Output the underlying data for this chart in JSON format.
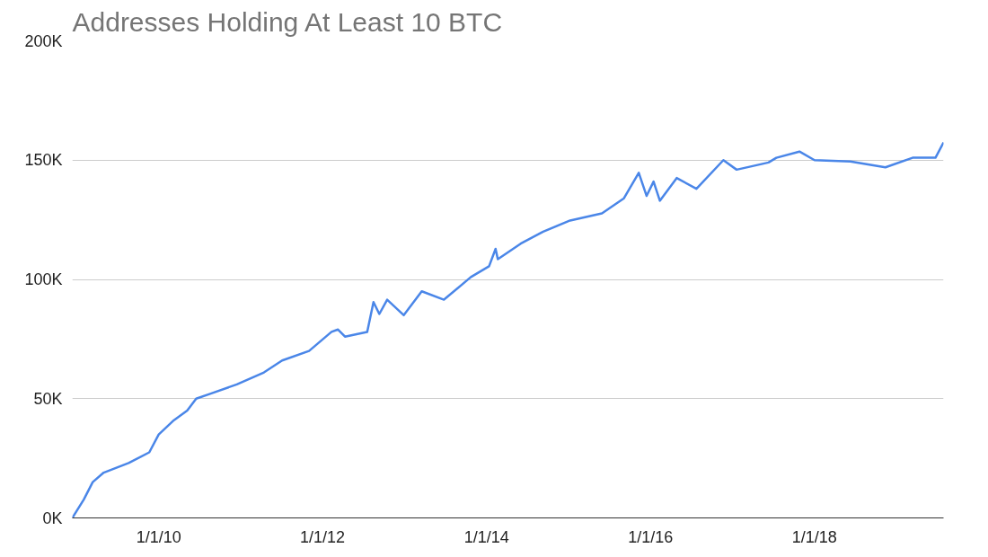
{
  "chart_data": {
    "type": "line",
    "title": "Addresses Holding At Least 10 BTC",
    "x": [
      "2008-12-12",
      "2009-02-01",
      "2009-03-13",
      "2009-05-01",
      "2009-08-20",
      "2009-11-20",
      "2010-01-01",
      "2010-03-10",
      "2010-05-08",
      "2010-06-17",
      "2010-08-18",
      "2010-12-15",
      "2011-04-15",
      "2011-07-05",
      "2011-11-02",
      "2012-02-10",
      "2012-03-10",
      "2012-04-10",
      "2012-07-18",
      "2012-08-15",
      "2012-09-10",
      "2012-10-15",
      "2012-12-28",
      "2013-03-18",
      "2013-06-25",
      "2013-10-23",
      "2014-01-12",
      "2014-02-10",
      "2014-02-20",
      "2014-06-02",
      "2014-09-10",
      "2015-01-08",
      "2015-05-30",
      "2015-09-05",
      "2015-11-10",
      "2015-12-15",
      "2016-01-15",
      "2016-02-12",
      "2016-04-27",
      "2016-07-24",
      "2016-11-21",
      "2017-01-19",
      "2017-06-10",
      "2017-07-15",
      "2017-10-26",
      "2018-01-01",
      "2018-06-10",
      "2018-11-13",
      "2019-03-14",
      "2019-06-24",
      "2019-07-30"
    ],
    "series": [
      {
        "color": "#4a86e8",
        "values": [
          0,
          7700,
          15000,
          19000,
          23000,
          27500,
          35000,
          41000,
          45000,
          50000,
          52000,
          56000,
          61000,
          66000,
          70000,
          78000,
          79000,
          76000,
          78000,
          90500,
          85500,
          91500,
          85000,
          95000,
          91500,
          101000,
          105500,
          112800,
          108500,
          115000,
          120000,
          124700,
          127700,
          134000,
          144700,
          135000,
          141000,
          133000,
          142500,
          138000,
          150000,
          146000,
          149000,
          151000,
          153600,
          150000,
          149400,
          147000,
          151000,
          151000,
          157400
        ]
      }
    ],
    "xlim": [
      "2008-12-12",
      "2019-07-30"
    ],
    "xticks": [
      {
        "value": "2010-01-01",
        "label": "1/1/10"
      },
      {
        "value": "2012-01-01",
        "label": "1/1/12"
      },
      {
        "value": "2014-01-01",
        "label": "1/1/14"
      },
      {
        "value": "2016-01-01",
        "label": "1/1/16"
      },
      {
        "value": "2018-01-01",
        "label": "1/1/18"
      }
    ],
    "ylim": [
      0,
      200000
    ],
    "yticks": [
      {
        "value": 0,
        "label": "0K"
      },
      {
        "value": 50000,
        "label": "50K"
      },
      {
        "value": 100000,
        "label": "100K"
      },
      {
        "value": 150000,
        "label": "150K"
      },
      {
        "value": 200000,
        "label": "200K"
      }
    ],
    "grid": "y",
    "marker": "none",
    "line_style": "solid"
  }
}
